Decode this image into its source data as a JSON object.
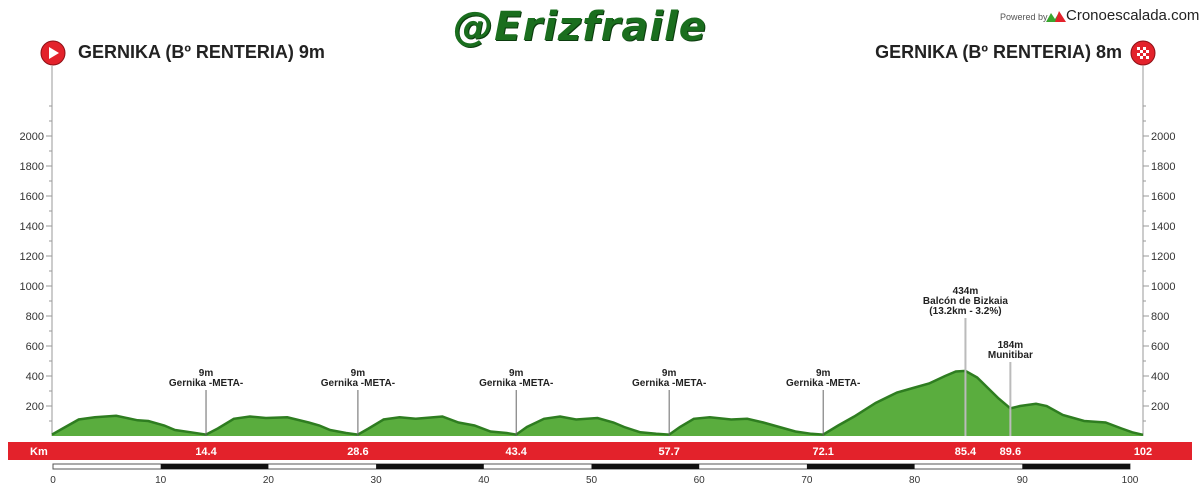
{
  "header": {
    "brand": "@Erizfraile",
    "powered_by": "Powered by",
    "site": "Cronoescalada.com",
    "start_label": "GERNIKA (Bº RENTERIA) 9m",
    "end_label": "GERNIKA (Bº RENTERIA) 8m"
  },
  "colors": {
    "profile_fill": "#5aad3e",
    "profile_dark": "#2e7d20",
    "distance_bar": "#e3222b",
    "brand": "#1a6e1e"
  },
  "icons": {
    "start": "start-flag-icon",
    "finish": "finish-flag-icon",
    "site_logo": "mountain-logo-icon"
  },
  "chart_data": {
    "type": "area",
    "title": "",
    "xlabel": "",
    "ylabel": "",
    "distance_bar_label": "Km",
    "xlim": [
      0,
      102
    ],
    "ylim": [
      0,
      2000
    ],
    "y_ticks": [
      200,
      400,
      600,
      800,
      1000,
      1200,
      1400,
      1600,
      1800,
      2000
    ],
    "x_ticks": [
      0,
      10,
      20,
      30,
      40,
      50,
      60,
      70,
      80,
      90,
      100
    ],
    "distance_markers": [
      "14.4",
      "28.6",
      "43.4",
      "57.7",
      "72.1",
      "85.4",
      "89.6",
      "102"
    ],
    "profile": {
      "x": [
        0,
        1,
        2.5,
        4,
        6,
        8,
        9,
        10.5,
        11.5,
        13,
        14.4,
        15.5,
        17,
        18.5,
        20,
        22,
        24,
        25,
        26,
        27.5,
        28.6,
        29.6,
        31,
        32.5,
        34,
        36.5,
        38,
        39.5,
        41,
        42.5,
        43.4,
        44.4,
        46,
        47.5,
        49,
        51,
        52.5,
        53.5,
        55,
        56.5,
        57.7,
        58.7,
        60,
        61.5,
        63.5,
        65,
        66.5,
        68,
        69.5,
        71,
        72.1,
        73.5,
        75,
        77,
        79,
        80.5,
        82,
        83.5,
        84.5,
        85.4,
        86.5,
        87.5,
        88.5,
        89.6,
        90.5,
        92,
        93,
        94.5,
        96.5,
        98.5,
        100,
        101,
        102
      ],
      "y": [
        9,
        50,
        110,
        125,
        135,
        105,
        100,
        70,
        40,
        25,
        9,
        50,
        115,
        130,
        120,
        125,
        90,
        70,
        40,
        20,
        9,
        50,
        110,
        125,
        115,
        130,
        90,
        70,
        30,
        20,
        9,
        60,
        115,
        130,
        110,
        120,
        90,
        60,
        25,
        15,
        9,
        60,
        115,
        125,
        110,
        115,
        90,
        60,
        30,
        15,
        9,
        70,
        130,
        220,
        290,
        320,
        350,
        400,
        430,
        434,
        390,
        320,
        250,
        184,
        200,
        215,
        200,
        140,
        100,
        90,
        50,
        25,
        8
      ]
    },
    "annotations": [
      {
        "x": 14.4,
        "lines": [
          "9m",
          "Gernika -META-"
        ]
      },
      {
        "x": 28.6,
        "lines": [
          "9m",
          "Gernika -META-"
        ]
      },
      {
        "x": 43.4,
        "lines": [
          "9m",
          "Gernika -META-"
        ]
      },
      {
        "x": 57.7,
        "lines": [
          "9m",
          "Gernika -META-"
        ]
      },
      {
        "x": 72.1,
        "lines": [
          "9m",
          "Gernika -META-"
        ]
      },
      {
        "x": 85.4,
        "lines": [
          "434m",
          "Balcón de Bizkaia",
          "(13.2km - 3.2%)"
        ]
      },
      {
        "x": 89.6,
        "lines": [
          "184m",
          "Munitibar"
        ]
      }
    ]
  }
}
